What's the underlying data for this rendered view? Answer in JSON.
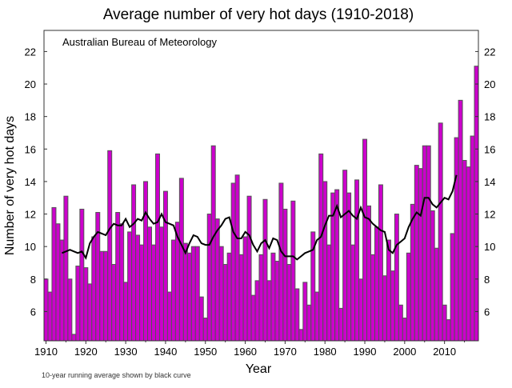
{
  "chart_data": {
    "type": "bar",
    "title": "Average number of very hot days (1910-2018)",
    "xlabel": "Year",
    "ylabel": "Number of very hot days",
    "annotation": "Australian Bureau of Meteorology",
    "footnote": "10-year running average shown by black curve",
    "ylim": [
      4.2,
      23.3
    ],
    "xlim": [
      1909.5,
      2018.5
    ],
    "yticks": [
      6,
      8,
      10,
      12,
      14,
      16,
      18,
      20,
      22
    ],
    "xticks": [
      1910,
      1920,
      1930,
      1940,
      1950,
      1960,
      1970,
      1980,
      1990,
      2000,
      2010
    ],
    "grid": false,
    "colors": {
      "bars": "#cc00cc",
      "bar_edge": "#555555",
      "running_average": "#000000"
    },
    "series": [
      {
        "type": "bar",
        "years": [
          1910,
          1911,
          1912,
          1913,
          1914,
          1915,
          1916,
          1917,
          1918,
          1919,
          1920,
          1921,
          1922,
          1923,
          1924,
          1925,
          1926,
          1927,
          1928,
          1929,
          1930,
          1931,
          1932,
          1933,
          1934,
          1935,
          1936,
          1937,
          1938,
          1939,
          1940,
          1941,
          1942,
          1943,
          1944,
          1945,
          1946,
          1947,
          1948,
          1949,
          1950,
          1951,
          1952,
          1953,
          1954,
          1955,
          1956,
          1957,
          1958,
          1959,
          1960,
          1961,
          1962,
          1963,
          1964,
          1965,
          1966,
          1967,
          1968,
          1969,
          1970,
          1971,
          1972,
          1973,
          1974,
          1975,
          1976,
          1977,
          1978,
          1979,
          1980,
          1981,
          1982,
          1983,
          1984,
          1985,
          1986,
          1987,
          1988,
          1989,
          1990,
          1991,
          1992,
          1993,
          1994,
          1995,
          1996,
          1997,
          1998,
          1999,
          2000,
          2001,
          2002,
          2003,
          2004,
          2005,
          2006,
          2007,
          2008,
          2009,
          2010,
          2011,
          2012,
          2013,
          2014,
          2015,
          2016,
          2017,
          2018
        ],
        "values": [
          8.0,
          7.2,
          12.4,
          11.4,
          10.4,
          13.1,
          8.0,
          4.6,
          8.8,
          12.3,
          8.7,
          7.7,
          10.6,
          12.1,
          9.7,
          9.7,
          15.9,
          8.9,
          12.1,
          11.4,
          7.8,
          10.9,
          13.8,
          10.7,
          10.1,
          14.0,
          11.2,
          10.1,
          15.7,
          11.2,
          13.4,
          7.2,
          10.4,
          11.5,
          14.2,
          10.2,
          9.6,
          10.0,
          10.0,
          6.9,
          5.6,
          12.0,
          16.2,
          11.7,
          10.0,
          8.9,
          9.6,
          13.9,
          14.4,
          9.5,
          10.6,
          13.1,
          7.0,
          7.9,
          9.5,
          12.9,
          7.9,
          9.6,
          9.1,
          13.9,
          12.3,
          8.9,
          12.8,
          7.4,
          4.9,
          7.8,
          6.4,
          10.9,
          7.2,
          15.7,
          14.0,
          10.1,
          13.3,
          13.5,
          6.2,
          14.7,
          13.3,
          10.1,
          14.1,
          8.0,
          16.6,
          12.5,
          9.5,
          11.2,
          13.8,
          8.2,
          10.4,
          8.5,
          12.0,
          6.4,
          5.6,
          9.6,
          12.6,
          15.0,
          14.8,
          16.2,
          16.2,
          12.2,
          9.9,
          17.6,
          6.4,
          5.5,
          10.8,
          16.7,
          19.0,
          15.3,
          14.9,
          16.8,
          21.1
        ]
      },
      {
        "type": "line",
        "years": [
          1914,
          1915,
          1916,
          1917,
          1918,
          1919,
          1920,
          1921,
          1922,
          1923,
          1924,
          1925,
          1926,
          1927,
          1928,
          1929,
          1930,
          1931,
          1932,
          1933,
          1934,
          1935,
          1936,
          1937,
          1938,
          1939,
          1940,
          1941,
          1942,
          1943,
          1944,
          1945,
          1946,
          1947,
          1948,
          1949,
          1950,
          1951,
          1952,
          1953,
          1954,
          1955,
          1956,
          1957,
          1958,
          1959,
          1960,
          1961,
          1962,
          1963,
          1964,
          1965,
          1966,
          1967,
          1968,
          1969,
          1970,
          1971,
          1972,
          1973,
          1974,
          1975,
          1976,
          1977,
          1978,
          1979,
          1980,
          1981,
          1982,
          1983,
          1984,
          1985,
          1986,
          1987,
          1988,
          1989,
          1990,
          1991,
          1992,
          1993,
          1994,
          1995,
          1996,
          1997,
          1998,
          1999,
          2000,
          2001,
          2002,
          2003,
          2004,
          2005,
          2006,
          2007,
          2008,
          2009,
          2010,
          2011,
          2012,
          2013
        ],
        "values": [
          9.6,
          9.7,
          9.8,
          9.7,
          9.6,
          9.7,
          9.3,
          10.2,
          10.6,
          10.9,
          10.8,
          10.7,
          11.1,
          11.4,
          11.3,
          11.3,
          11.7,
          11.2,
          11.4,
          11.7,
          11.6,
          12.1,
          11.7,
          11.4,
          11.5,
          12.0,
          11.5,
          11.4,
          11.3,
          10.6,
          10.1,
          9.6,
          10.2,
          10.7,
          10.6,
          10.2,
          10.1,
          10.1,
          10.6,
          11.0,
          11.3,
          11.7,
          11.8,
          10.9,
          10.5,
          10.5,
          10.9,
          10.7,
          10.1,
          9.7,
          10.2,
          10.4,
          9.9,
          10.5,
          10.4,
          9.7,
          9.4,
          9.4,
          9.4,
          9.2,
          9.4,
          9.6,
          9.7,
          9.8,
          10.4,
          10.6,
          11.3,
          11.9,
          11.9,
          12.5,
          11.8,
          12.0,
          12.2,
          11.9,
          11.7,
          12.4,
          11.8,
          11.7,
          11.4,
          11.2,
          11.0,
          10.9,
          9.8,
          9.6,
          10.1,
          10.3,
          10.5,
          11.2,
          11.7,
          12.1,
          11.9,
          13.0,
          13.0,
          12.6,
          12.4,
          12.7,
          13.0,
          12.9,
          13.4,
          14.4
        ]
      }
    ]
  }
}
